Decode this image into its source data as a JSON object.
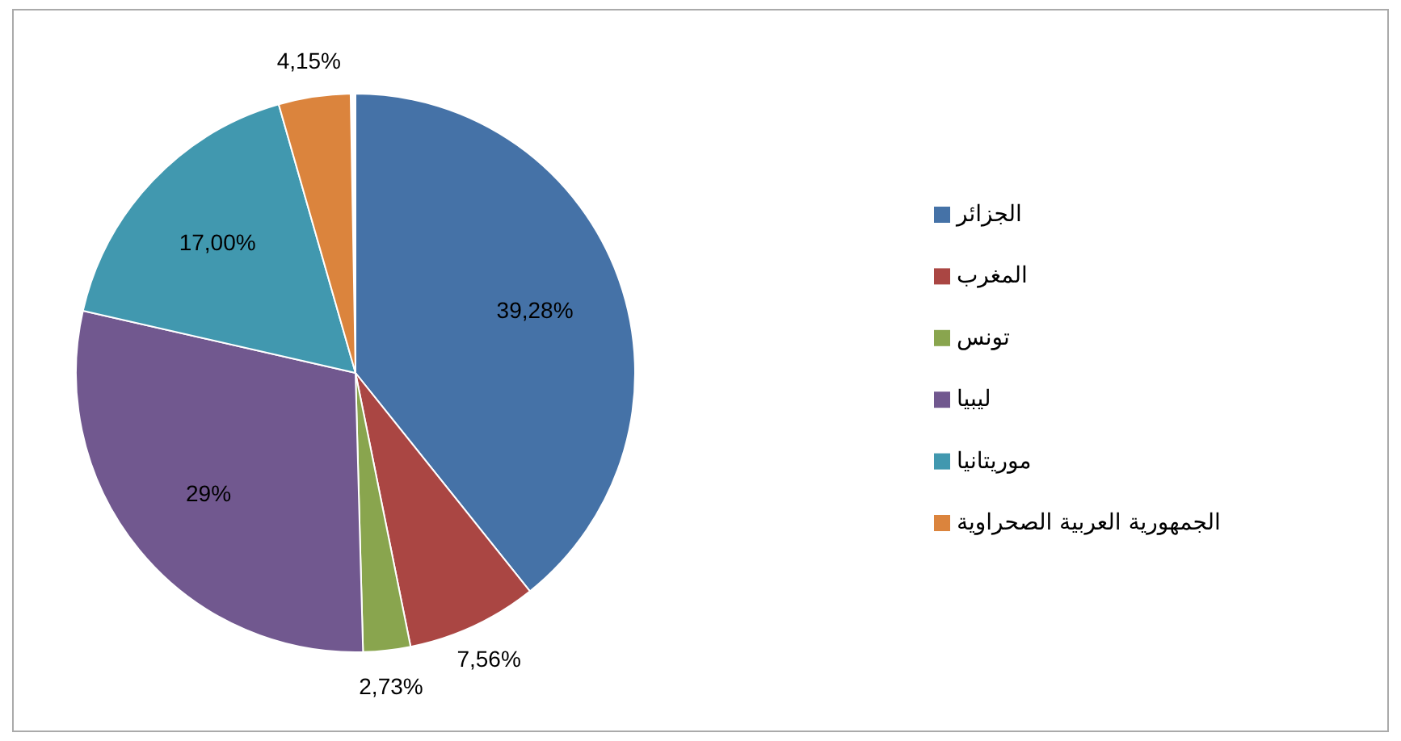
{
  "chart_data": {
    "type": "pie",
    "categories": [
      "الجزائر",
      "المغرب",
      "تونس",
      "ليبيا",
      "موريتانيا",
      "الجمهورية العربية الصحراوية"
    ],
    "values": [
      39.28,
      7.56,
      2.73,
      29,
      17.0,
      4.15
    ],
    "colors": [
      "#4572a7",
      "#aa4643",
      "#89a54e",
      "#71588f",
      "#4198af",
      "#db843d"
    ],
    "value_labels": [
      "39,28%",
      "7,56%",
      "2,73%",
      "29%",
      "17,00%",
      "4,15%"
    ],
    "legend": "right"
  }
}
